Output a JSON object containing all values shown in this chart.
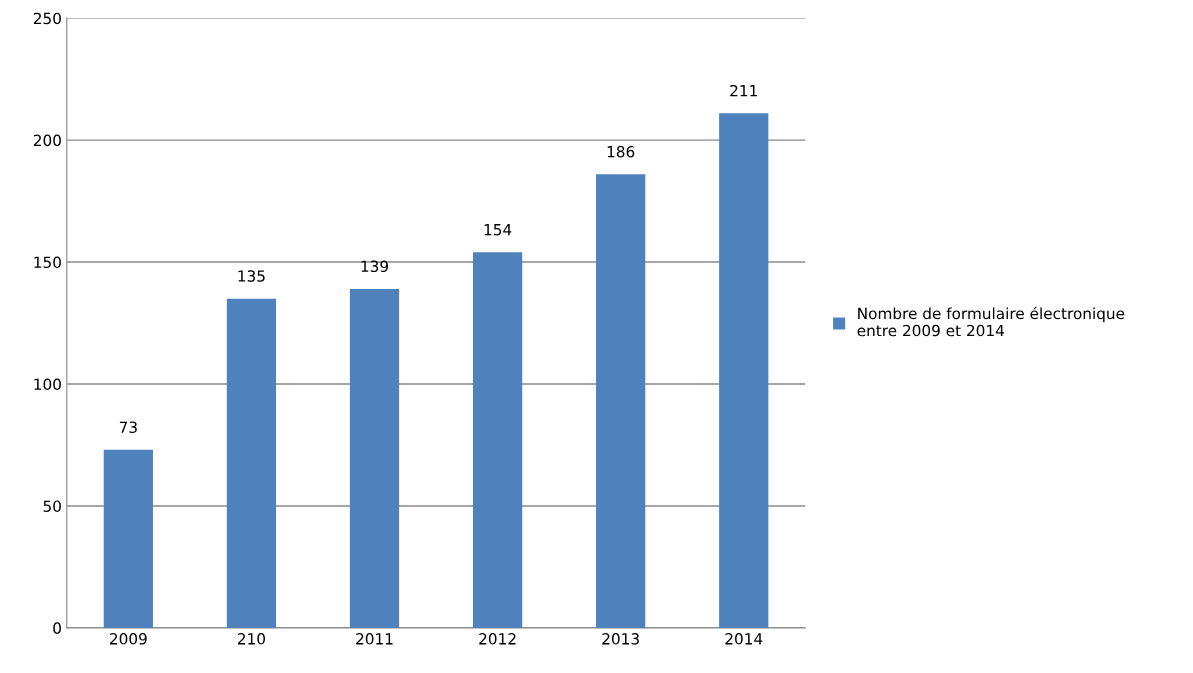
{
  "chart_data": {
    "type": "bar",
    "categories": [
      "2009",
      "210",
      "2011",
      "2012",
      "2013",
      "2014"
    ],
    "series": [
      {
        "name": "Nombre de formulaire électronique\nentre 2009 et 2014",
        "color": "#4f81bd",
        "values": [
          73,
          135,
          139,
          154,
          186,
          211
        ]
      }
    ],
    "ylim": [
      0,
      250
    ],
    "yticks": [
      0,
      50,
      100,
      150,
      200,
      250
    ],
    "grid": "y",
    "legend": "right",
    "data_labels": true
  }
}
